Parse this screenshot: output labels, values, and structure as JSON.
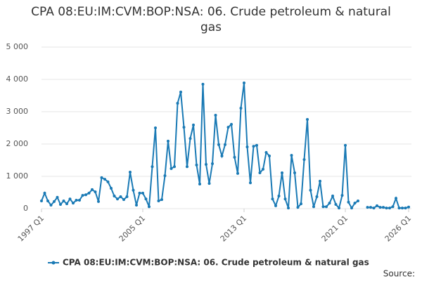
{
  "chart_data": {
    "type": "line",
    "title": "CPA 08:EU:IM:CVM:BOP:NSA: 06. Crude petroleum & natural gas",
    "source_label": "Source:",
    "categories": [
      "1997 Q1",
      null,
      null,
      null,
      null,
      null,
      null,
      null,
      null,
      null,
      null,
      null,
      null,
      null,
      null,
      null,
      null,
      null,
      null,
      null,
      null,
      null,
      null,
      null,
      null,
      null,
      null,
      null,
      null,
      null,
      null,
      null,
      "2005 Q1",
      null,
      null,
      null,
      null,
      null,
      null,
      null,
      null,
      null,
      null,
      null,
      null,
      null,
      null,
      null,
      null,
      null,
      null,
      null,
      null,
      null,
      null,
      null,
      null,
      null,
      null,
      null,
      null,
      null,
      null,
      null,
      "2013 Q1",
      null,
      null,
      null,
      null,
      null,
      null,
      null,
      null,
      null,
      null,
      null,
      null,
      null,
      null,
      null,
      null,
      null,
      null,
      null,
      null,
      null,
      null,
      null,
      null,
      null,
      null,
      null,
      null,
      null,
      null,
      null,
      "2021 Q1",
      null,
      null,
      null,
      null,
      null,
      null,
      null,
      null,
      null,
      null,
      null,
      null,
      null,
      null,
      null,
      null,
      null,
      null,
      null,
      "2026 Q1"
    ],
    "series": [
      {
        "name": "CPA 08:EU:IM:CVM:BOP:NSA: 06. Crude petroleum & natural gas",
        "color": "#1a7ab5",
        "values": [
          240,
          480,
          240,
          110,
          220,
          350,
          130,
          240,
          150,
          300,
          170,
          260,
          260,
          410,
          430,
          480,
          590,
          520,
          220,
          960,
          910,
          830,
          630,
          390,
          300,
          370,
          280,
          370,
          1130,
          570,
          110,
          480,
          480,
          300,
          60,
          1300,
          2500,
          240,
          280,
          1020,
          2090,
          1240,
          1300,
          3260,
          3610,
          2520,
          1300,
          2170,
          2590,
          1350,
          760,
          3850,
          1370,
          780,
          1390,
          2890,
          1980,
          1630,
          1980,
          2520,
          2610,
          1590,
          1090,
          3110,
          3890,
          1910,
          800,
          1930,
          1960,
          1110,
          1220,
          1740,
          1630,
          300,
          90,
          390,
          1110,
          300,
          20,
          1650,
          1110,
          40,
          150,
          1520,
          2760,
          570,
          60,
          370,
          850,
          60,
          60,
          170,
          390,
          130,
          20,
          410,
          1960,
          200,
          20,
          170,
          240,
          null,
          null,
          40,
          40,
          20,
          90,
          40,
          40,
          20,
          20,
          60,
          320,
          20,
          20,
          20,
          50
        ]
      }
    ],
    "ylim": [
      0,
      5000
    ],
    "yticks": [
      0,
      {
        "value": 1000,
        "label": "1 000"
      },
      {
        "value": 2000,
        "label": "2 000"
      },
      {
        "value": 3000,
        "label": "3 000"
      },
      {
        "value": 4000,
        "label": "4 000"
      },
      {
        "value": 5000,
        "label": "5 000"
      }
    ],
    "grid": true
  }
}
